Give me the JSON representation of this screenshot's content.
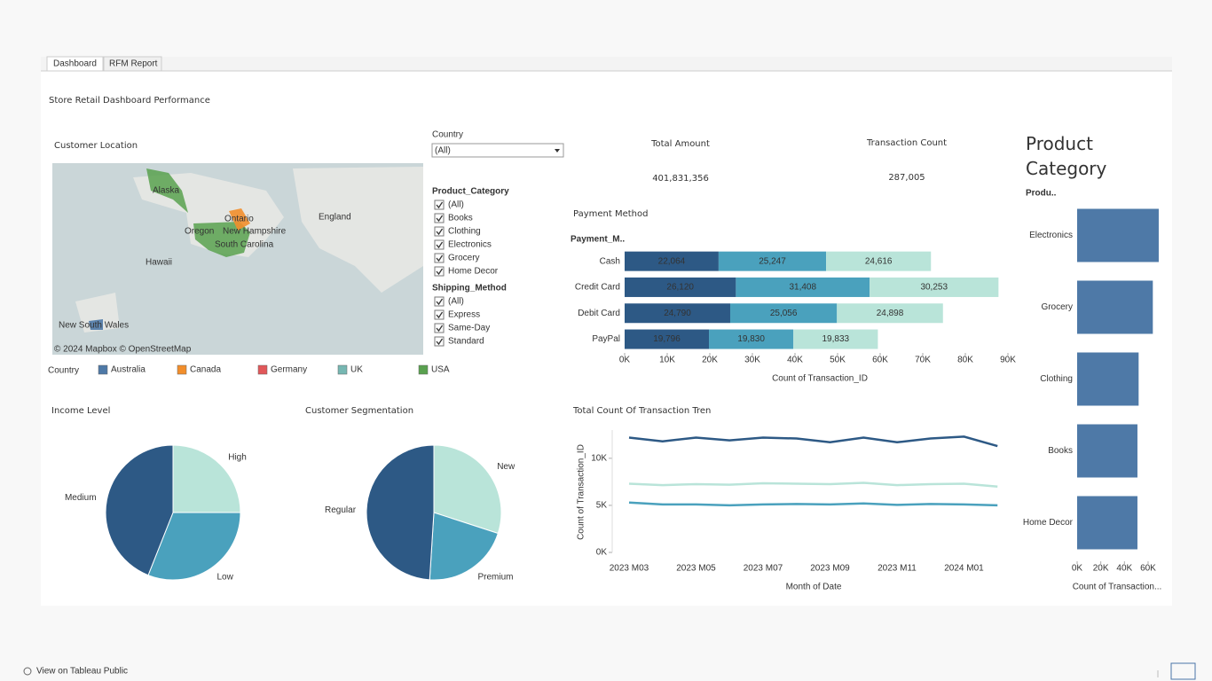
{
  "tabs": [
    "Dashboard",
    "RFM Report"
  ],
  "title": "Store Retail Dashboard Performance",
  "map": {
    "title": "Customer Location",
    "labels": [
      "Alaska",
      "Ontario",
      "Oregon",
      "New Hampshire",
      "South Carolina",
      "England",
      "Hawaii",
      "New South Wales"
    ],
    "attribution": "© 2024 Mapbox © OpenStreetMap",
    "legend_title": "Country",
    "legend": [
      {
        "name": "Australia",
        "color": "#4e79a7"
      },
      {
        "name": "Canada",
        "color": "#f28e2b"
      },
      {
        "name": "Germany",
        "color": "#e15759"
      },
      {
        "name": "UK",
        "color": "#76b7b2"
      },
      {
        "name": "USA",
        "color": "#59a14f"
      }
    ]
  },
  "filters": {
    "country": {
      "label": "Country",
      "value": "(All)"
    },
    "product_category": {
      "label": "Product_Category",
      "options": [
        "(All)",
        "Books",
        "Clothing",
        "Electronics",
        "Grocery",
        "Home Decor"
      ]
    },
    "shipping_method": {
      "label": "Shipping_Method",
      "options": [
        "(All)",
        "Express",
        "Same-Day",
        "Standard"
      ]
    }
  },
  "kpis": [
    {
      "title": "Total Amount",
      "value": "401,831,356"
    },
    {
      "title": "Transaction Count",
      "value": "287,005"
    }
  ],
  "footer": "View on Tableau Public",
  "chart_data": [
    {
      "type": "bar",
      "orientation": "horizontal",
      "stacked": true,
      "title": "Payment Method",
      "category_header": "Payment_M..",
      "categories": [
        "Cash",
        "Credit Card",
        "Debit Card",
        "PayPal"
      ],
      "series": [
        {
          "color": "#2d5985",
          "values": [
            22064,
            26120,
            24790,
            19796
          ],
          "value_labels": [
            "22,064",
            "26,120",
            "24,790",
            "19,796"
          ]
        },
        {
          "color": "#4aa1bd",
          "values": [
            25247,
            31408,
            25056,
            19830
          ],
          "value_labels": [
            "25,247",
            "31,408",
            "25,056",
            "19,830"
          ]
        },
        {
          "color": "#b9e4d9",
          "values": [
            24616,
            30253,
            24898,
            19833
          ],
          "value_labels": [
            "24,616",
            "30,253",
            "24,898",
            "19,833"
          ]
        }
      ],
      "xlim": [
        0,
        90000
      ],
      "xticks": [
        {
          "value": 0,
          "label": "0K"
        },
        {
          "value": 10000,
          "label": "10K"
        },
        {
          "value": 20000,
          "label": "20K"
        },
        {
          "value": 30000,
          "label": "30K"
        },
        {
          "value": 40000,
          "label": "40K"
        },
        {
          "value": 50000,
          "label": "50K"
        },
        {
          "value": 60000,
          "label": "60K"
        },
        {
          "value": 70000,
          "label": "70K"
        },
        {
          "value": 80000,
          "label": "80K"
        },
        {
          "value": 90000,
          "label": "90K"
        }
      ],
      "xlabel": "Count of Transaction_ID"
    },
    {
      "type": "pie",
      "title": "Income Level",
      "categories": [
        "High",
        "Low",
        "Medium"
      ],
      "values": [
        25,
        31,
        44
      ],
      "colors": [
        "#b9e4d9",
        "#4aa1bd",
        "#2d5985"
      ]
    },
    {
      "type": "pie",
      "title": "Customer Segmentation",
      "categories": [
        "New",
        "Premium",
        "Regular"
      ],
      "values": [
        30,
        21,
        49
      ],
      "colors": [
        "#b9e4d9",
        "#4aa1bd",
        "#2d5985"
      ]
    },
    {
      "type": "line",
      "title": "Total Count Of Transaction Tren",
      "categories": [
        "2023 M03",
        null,
        "2023 M05",
        null,
        "2023 M07",
        null,
        "2023 M09",
        null,
        "2023 M11",
        null,
        "2024 M01",
        null
      ],
      "series": [
        {
          "color": "#2d5985",
          "values": [
            12200,
            11800,
            12200,
            11900,
            12200,
            12100,
            11700,
            12200,
            11700,
            12100,
            12300,
            11300
          ]
        },
        {
          "color": "#b9e4d9",
          "values": [
            7300,
            7150,
            7250,
            7200,
            7350,
            7300,
            7250,
            7400,
            7150,
            7250,
            7300,
            7000
          ]
        },
        {
          "color": "#4aa1bd",
          "values": [
            5300,
            5100,
            5100,
            5000,
            5100,
            5150,
            5100,
            5200,
            5050,
            5150,
            5100,
            5000
          ]
        }
      ],
      "ylim": [
        0,
        13000
      ],
      "yticks": [
        {
          "value": 0,
          "label": "0K"
        },
        {
          "value": 5000,
          "label": "5K"
        },
        {
          "value": 10000,
          "label": "10K"
        }
      ],
      "xlabel": "Month of Date",
      "ylabel": "Count of Transaction_ID"
    },
    {
      "type": "bar",
      "orientation": "horizontal",
      "title": "Product Category",
      "category_header": "Produ..",
      "categories": [
        "Electronics",
        "Grocery",
        "Clothing",
        "Books",
        "Home Decor"
      ],
      "values": [
        69000,
        64000,
        52000,
        51000,
        51000
      ],
      "color": "#4e79a7",
      "xlim": [
        0,
        70000
      ],
      "xticks": [
        {
          "value": 0,
          "label": "0K"
        },
        {
          "value": 20000,
          "label": "20K"
        },
        {
          "value": 40000,
          "label": "40K"
        },
        {
          "value": 60000,
          "label": "60K"
        }
      ],
      "xlabel": "Count of Transaction..."
    }
  ]
}
